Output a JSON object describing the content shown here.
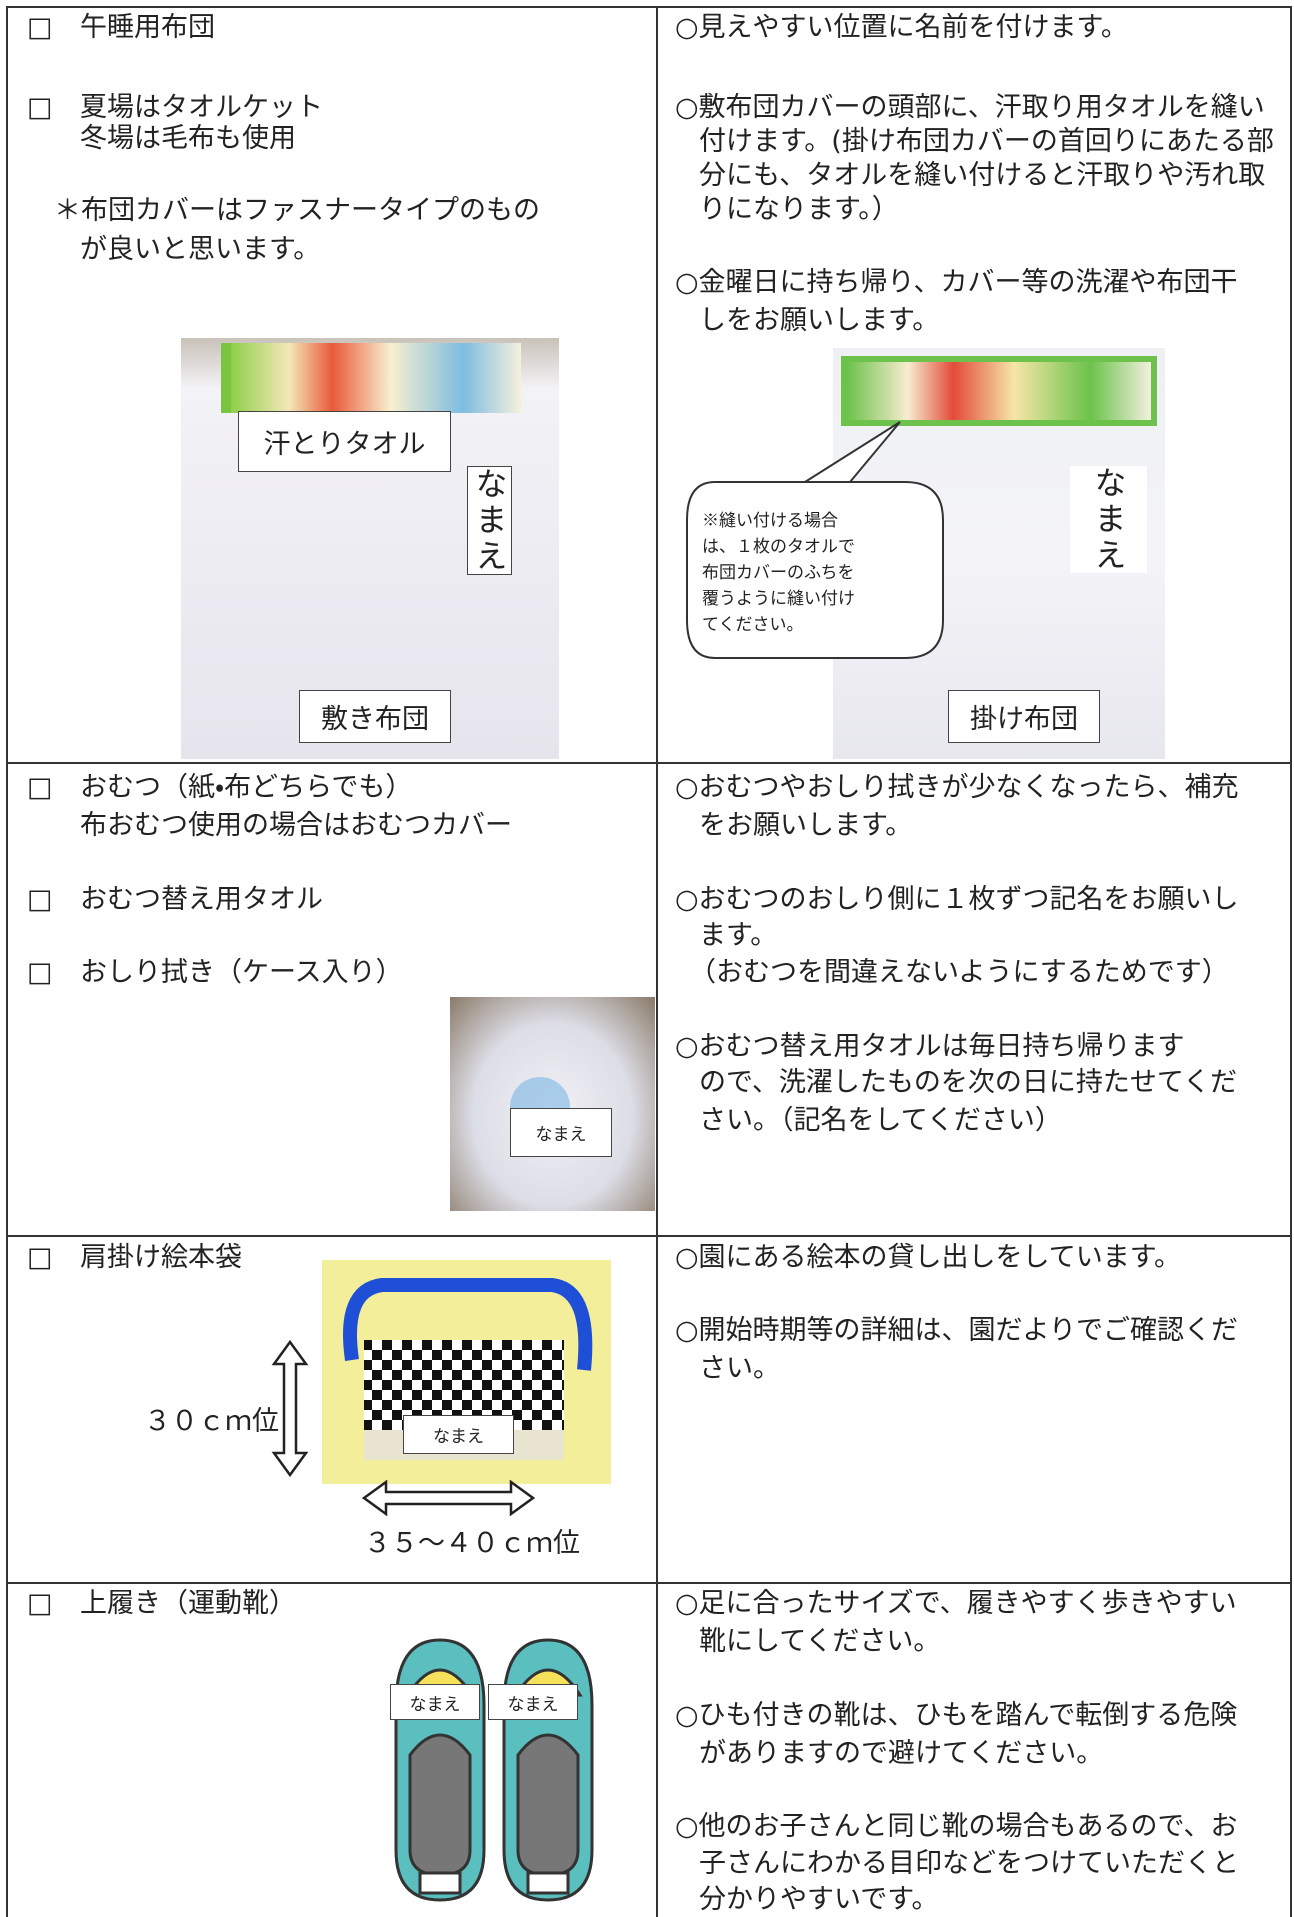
{
  "rows": [
    {
      "left": {
        "items": [
          {
            "box": "□",
            "lines": [
              "午睡用布団"
            ]
          },
          {
            "box": "□",
            "lines": [
              "夏場はタオルケット",
              "冬場は毛布も使用"
            ]
          }
        ],
        "note": [
          "＊布団カバーはファスナータイプのもの",
          "が良いと思います。"
        ],
        "photo_labels": [
          "汗とりタオル",
          "なまえ",
          "敷き布団"
        ]
      },
      "right": {
        "paragraphs": [
          [
            "○見えやすい位置に名前を付けます。"
          ],
          [
            "○敷布団カバーの頭部に、汗取り用タオルを縫い",
            "付けます。(掛け布団カバーの首回りにあたる部",
            "分にも、タオルを縫い付けると汗取りや汚れ取",
            "りになります。）"
          ],
          [
            "○金曜日に持ち帰り、カバー等の洗濯や布団干",
            "しをお願いします。"
          ]
        ],
        "callout": [
          "※縫い付ける場合",
          "は、１枚のタオルで",
          "布団カバーのふちを",
          "覆うように縫い付け",
          "てください。"
        ],
        "photo_labels": [
          "なまえ",
          "掛け布団"
        ]
      }
    },
    {
      "left": {
        "items": [
          {
            "box": "□",
            "lines": [
              "おむつ（紙・布どちらでも）",
              "布おむつ使用の場合はおむつカバー"
            ]
          },
          {
            "box": "□",
            "lines": [
              "おむつ替え用タオル"
            ]
          },
          {
            "box": "□",
            "lines": [
              "おしり拭き（ケース入り）"
            ]
          }
        ],
        "photo_labels": [
          "なまえ"
        ]
      },
      "right": {
        "paragraphs": [
          [
            "○おむつやおしり拭きが少なくなったら、補充",
            "をお願いします。"
          ],
          [
            "○おむつのおしり側に１枚ずつ記名をお願いし",
            "ます。",
            "（おむつを間違えないようにするためです）"
          ],
          [
            "○おむつ替え用タオルは毎日持ち帰ります",
            "ので、洗濯したものを次の日に持たせてくだ",
            "さい。（記名をしてください）"
          ]
        ]
      }
    },
    {
      "left": {
        "items": [
          {
            "box": "□",
            "lines": [
              "肩掛け絵本袋"
            ]
          }
        ],
        "photo_labels": [
          "なまえ"
        ],
        "height_label": "３０ｃｍ位",
        "width_label": "３５～４０ｃｍ位"
      },
      "right": {
        "paragraphs": [
          [
            "○園にある絵本の貸し出しをしています。"
          ],
          [
            "○開始時期等の詳細は、園だよりでご確認くだ",
            "さい。"
          ]
        ]
      }
    },
    {
      "left": {
        "items": [
          {
            "box": "□",
            "lines": [
              "上履き（運動靴）"
            ]
          }
        ],
        "photo_labels": [
          "なまえ",
          "なまえ"
        ]
      },
      "right": {
        "paragraphs": [
          [
            "○足に合ったサイズで、履きやすく歩きやすい",
            "靴にしてください。"
          ],
          [
            "○ひも付きの靴は、ひもを踏んで転倒する危険",
            "がありますので避けてください。"
          ],
          [
            "○他のお子さんと同じ靴の場合もあるので、お",
            "子さんにわかる目印などをつけていただくと",
            "分かりやすいです。"
          ]
        ]
      }
    }
  ]
}
